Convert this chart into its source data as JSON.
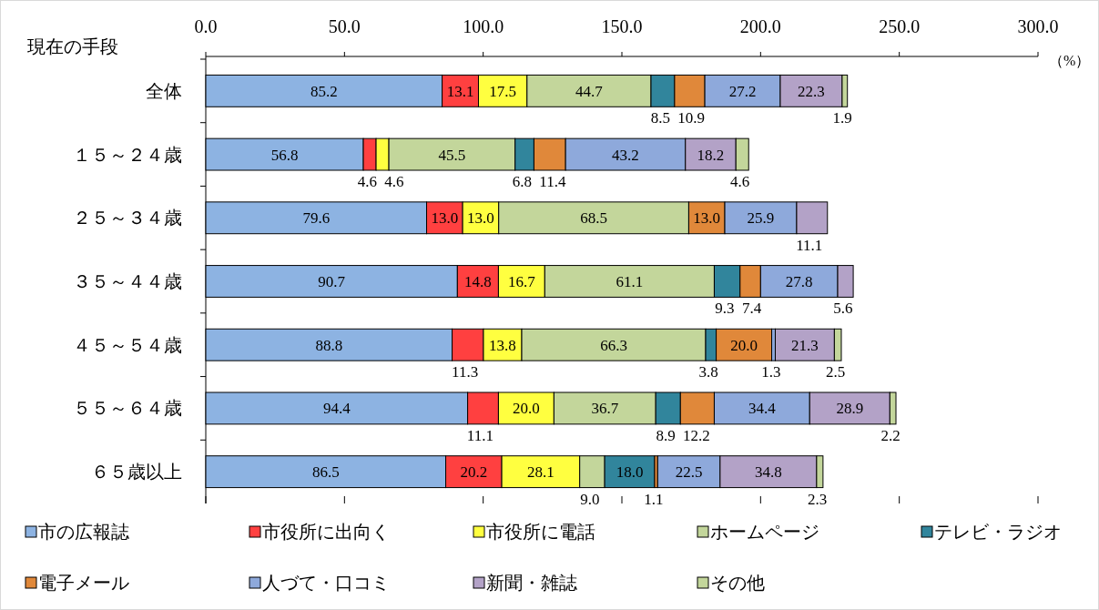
{
  "chart_data": {
    "type": "bar",
    "orientation": "horizontal",
    "stacked": true,
    "grid": false,
    "legend": "bottom",
    "ylabel": "現在の手段",
    "xlabel": "（%）",
    "xlim": [
      0,
      300
    ],
    "xticks": [
      {
        "value": 0,
        "label": "0.0"
      },
      {
        "value": 50,
        "label": "50.0"
      },
      {
        "value": 100,
        "label": "100.0"
      },
      {
        "value": 150,
        "label": "150.0"
      },
      {
        "value": 200,
        "label": "200.0"
      },
      {
        "value": 250,
        "label": "250.0"
      },
      {
        "value": 300,
        "label": "300.0"
      }
    ],
    "categories": [
      "全体",
      "１５～２４歳",
      "２５～３４歳",
      "３５～４４歳",
      "４５～５４歳",
      "５５～６４歳",
      "６５歳以上"
    ],
    "series": [
      {
        "name": "市の広報誌",
        "color": "#8db3e2",
        "values": [
          85.2,
          56.8,
          79.6,
          90.7,
          88.8,
          94.4,
          86.5
        ],
        "value_labels": [
          "85.2",
          "56.8",
          "79.6",
          "90.7",
          "88.8",
          "94.4",
          "86.5"
        ]
      },
      {
        "name": "市役所に出向く",
        "color": "#ff4040",
        "values": [
          13.1,
          4.6,
          13.0,
          14.8,
          11.3,
          11.1,
          20.2
        ],
        "value_labels": [
          "13.1",
          "4.6",
          "13.0",
          "14.8",
          "11.3",
          "11.1",
          "20.2"
        ]
      },
      {
        "name": "市役所に電話",
        "color": "#ffff40",
        "values": [
          17.5,
          4.6,
          13.0,
          16.7,
          13.8,
          20.0,
          28.1
        ],
        "value_labels": [
          "17.5",
          "4.6",
          "13.0",
          "16.7",
          "13.8",
          "20.0",
          "28.1"
        ]
      },
      {
        "name": "ホームページ",
        "color": "#c3d69b",
        "values": [
          44.7,
          45.5,
          68.5,
          61.1,
          66.3,
          36.7,
          9.0
        ],
        "value_labels": [
          "44.7",
          "45.5",
          "68.5",
          "61.1",
          "66.3",
          "36.7",
          "9.0"
        ]
      },
      {
        "name": "テレビ・ラジオ",
        "color": "#31859c",
        "values": [
          8.5,
          6.8,
          0,
          9.3,
          3.8,
          8.9,
          18.0
        ],
        "value_labels": [
          "8.5",
          "6.8",
          null,
          "9.3",
          "3.8",
          "8.9",
          "18.0"
        ]
      },
      {
        "name": "電子メール",
        "color": "#e0883a",
        "values": [
          10.9,
          11.4,
          13.0,
          7.4,
          20.0,
          12.2,
          1.1
        ],
        "value_labels": [
          "10.9",
          "11.4",
          "13.0",
          "7.4",
          "20.0",
          "12.2",
          "1.1"
        ]
      },
      {
        "name": "人づて・口コミ",
        "color": "#8ea9db",
        "values": [
          27.2,
          43.2,
          25.9,
          27.8,
          1.3,
          34.4,
          22.5
        ],
        "value_labels": [
          "27.2",
          "43.2",
          "25.9",
          "27.8",
          "1.3",
          "34.4",
          "22.5"
        ]
      },
      {
        "name": "新聞・雑誌",
        "color": "#b3a2c7",
        "values": [
          22.3,
          18.2,
          11.1,
          5.6,
          21.3,
          28.9,
          34.8
        ],
        "value_labels": [
          "22.3",
          "18.2",
          "11.1",
          "5.6",
          "21.3",
          "28.9",
          "34.8"
        ]
      },
      {
        "name": "その他",
        "color": "#c3d69b",
        "values": [
          1.9,
          4.6,
          0,
          0,
          2.5,
          2.2,
          2.3
        ],
        "value_labels": [
          "1.9",
          "4.6",
          null,
          null,
          "2.5",
          "2.2",
          "2.3"
        ]
      }
    ]
  }
}
